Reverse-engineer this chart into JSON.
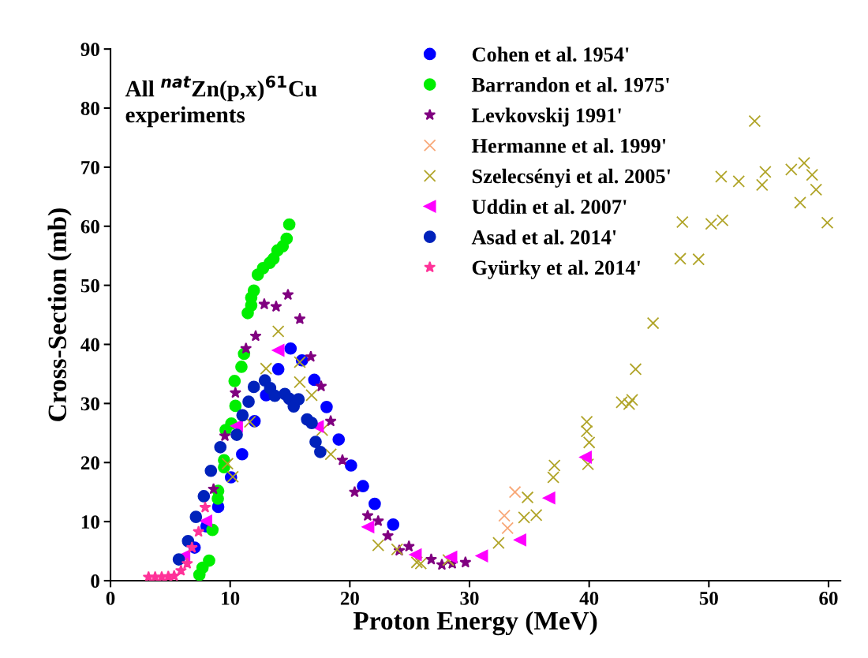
{
  "chart_data": {
    "type": "scatter",
    "xlabel": "Proton Energy (MeV)",
    "ylabel": "Cross-Section (mb)",
    "annotations": [
      "All $^{nat}$Zn(p,x)$^{61}$Cu\nexperiments"
    ],
    "xlim": [
      0,
      61
    ],
    "xticks": [
      0,
      10,
      20,
      30,
      40,
      50,
      60
    ],
    "ylim": [
      0,
      90
    ],
    "yticks": [
      0,
      10,
      20,
      30,
      40,
      50,
      60,
      70,
      80,
      90
    ],
    "grid": false,
    "legend": "top right",
    "series": [
      {
        "name": "Cohen et al. 1954'",
        "color": "#0000ff",
        "marker": "circle",
        "x": [
          7.03,
          8.02,
          9.0,
          10.07,
          11.0,
          12.04,
          13.0,
          14.02,
          15.05,
          16.0,
          17.03,
          18.06,
          19.07,
          20.1,
          21.1,
          22.08,
          23.62
        ],
        "values": [
          5.6,
          9.2,
          12.5,
          17.5,
          21.4,
          27.0,
          31.4,
          35.8,
          39.3,
          37.3,
          34.0,
          29.4,
          23.9,
          19.5,
          16.0,
          13.0,
          9.5
        ]
      },
      {
        "name": "Barrandon et al. 1975'",
        "color": "#00ee00",
        "marker": "circle",
        "x": [
          7.43,
          7.69,
          8.24,
          8.52,
          8.97,
          9.0,
          9.49,
          9.49,
          9.62,
          10.1,
          10.44,
          10.37,
          10.94,
          11.16,
          11.47,
          11.76,
          11.76,
          11.98,
          12.31,
          12.75,
          13.3,
          13.62,
          13.95,
          14.39,
          14.72,
          14.94
        ],
        "values": [
          1.0,
          2.2,
          3.4,
          8.6,
          13.9,
          15.2,
          19.2,
          20.4,
          25.5,
          26.6,
          29.6,
          33.8,
          36.2,
          38.4,
          45.3,
          46.6,
          47.9,
          49.1,
          51.8,
          52.9,
          53.8,
          54.5,
          55.9,
          56.6,
          57.9,
          60.3
        ]
      },
      {
        "name": "Levkovskij 1991'",
        "color": "#800080",
        "marker": "star",
        "x": [
          8.61,
          9.56,
          10.44,
          11.32,
          12.13,
          12.85,
          13.84,
          14.83,
          15.82,
          16.74,
          17.6,
          18.4,
          19.38,
          20.4,
          21.49,
          22.37,
          23.18,
          24.13,
          24.94,
          26.8,
          27.69,
          28.56,
          29.66
        ],
        "values": [
          15.5,
          24.5,
          31.8,
          39.3,
          41.4,
          46.8,
          46.4,
          48.4,
          44.3,
          37.9,
          32.9,
          27.0,
          20.4,
          15.0,
          11.0,
          10.1,
          7.6,
          5.1,
          5.8,
          3.6,
          2.7,
          2.9,
          3.1
        ]
      },
      {
        "name": "Hermanne et al. 1999'",
        "color": "#f8a878",
        "marker": "cross",
        "x": [
          32.91,
          33.18,
          33.8
        ],
        "values": [
          11.0,
          8.9,
          15.0
        ]
      },
      {
        "name": "Szelecsényi et al. 2005'",
        "color": "#b0a428",
        "marker": "cross",
        "x": [
          9.78,
          10.22,
          11.65,
          13.0,
          14.02,
          15.82,
          15.82,
          16.81,
          17.69,
          18.41,
          22.37,
          23.95,
          25.6,
          25.93,
          28.23,
          32.43,
          34.56,
          34.85,
          35.58,
          37.0,
          37.1,
          39.8,
          39.8,
          39.9,
          40.0,
          42.72,
          43.34,
          43.59,
          43.88,
          45.34,
          47.61,
          47.79,
          49.14,
          50.2,
          51.03,
          51.14,
          52.5,
          53.83,
          54.45,
          54.72,
          56.89,
          57.63,
          57.96,
          58.63,
          58.96,
          59.9
        ],
        "values": [
          19.8,
          17.6,
          26.9,
          35.9,
          42.2,
          37.0,
          33.6,
          31.4,
          25.5,
          21.4,
          6.0,
          5.3,
          3.1,
          2.9,
          3.5,
          6.4,
          10.7,
          14.1,
          11.1,
          17.5,
          19.5,
          25.3,
          26.9,
          19.7,
          23.4,
          30.2,
          29.9,
          30.6,
          35.8,
          43.6,
          54.5,
          60.7,
          54.4,
          60.4,
          68.4,
          61.0,
          67.6,
          77.8,
          67.0,
          69.2,
          69.6,
          64.0,
          70.7,
          68.7,
          66.2,
          60.6
        ]
      },
      {
        "name": "Uddin et al. 2007'",
        "color": "#ff00ff",
        "marker": "triangle",
        "x": [
          6.15,
          7.98,
          10.55,
          14.02,
          17.31,
          21.53,
          25.49,
          28.46,
          31.03,
          34.23,
          36.65,
          39.7
        ],
        "values": [
          4.2,
          10.1,
          26.2,
          39.0,
          26.1,
          9.1,
          4.4,
          4.0,
          4.2,
          6.9,
          14.0,
          20.9
        ]
      },
      {
        "name": "Asad et al. 2014'",
        "color": "#0022bb",
        "marker": "circle",
        "x": [
          5.71,
          6.48,
          7.14,
          7.8,
          8.39,
          9.18,
          10.55,
          11.03,
          11.54,
          11.98,
          12.9,
          13.34,
          13.73,
          14.57,
          14.94,
          15.31,
          15.71,
          16.43,
          16.81,
          17.14,
          17.53
        ],
        "values": [
          3.6,
          6.7,
          10.8,
          14.3,
          18.6,
          22.6,
          24.7,
          28.0,
          30.3,
          32.8,
          33.9,
          32.6,
          31.3,
          31.6,
          30.8,
          29.5,
          30.7,
          27.3,
          26.7,
          23.5,
          21.8
        ]
      },
      {
        "name": "Gyürky et al. 2014'",
        "color": "#ff3399",
        "marker": "star",
        "x": [
          3.18,
          3.73,
          4.28,
          4.83,
          5.32,
          5.89,
          6.41,
          6.81,
          7.36,
          7.91
        ],
        "values": [
          0.6,
          0.6,
          0.6,
          0.7,
          0.8,
          1.7,
          2.9,
          5.6,
          8.3,
          12.4
        ]
      }
    ]
  }
}
